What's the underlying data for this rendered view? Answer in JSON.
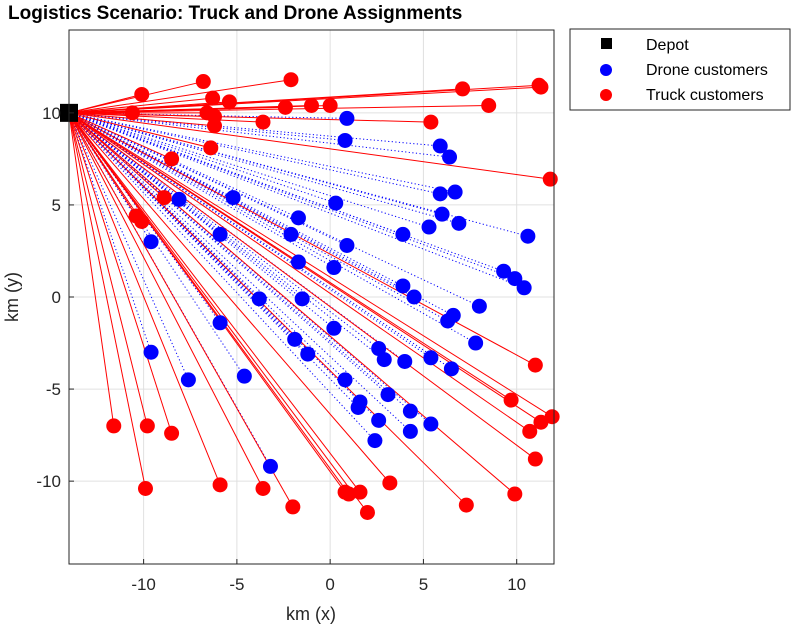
{
  "chart_data": {
    "type": "scatter",
    "title": "Logistics Scenario: Truck and Drone Assignments",
    "xlabel": "km (x)",
    "ylabel": "km (y)",
    "xlim": [
      -14,
      12
    ],
    "ylim": [
      -14.5,
      14.5
    ],
    "xticks": [
      -10,
      -5,
      0,
      5,
      10
    ],
    "yticks": [
      -10,
      -5,
      0,
      5,
      10
    ],
    "xtick_labels": [
      "-10",
      "-5",
      "0",
      "5",
      "10"
    ],
    "ytick_labels": [
      "-10",
      "-5",
      "0",
      "5",
      "10"
    ],
    "grid": true,
    "legend_position": "outside-top-right",
    "depot": {
      "name": "Depot",
      "x": -14,
      "y": 10,
      "color": "#000000"
    },
    "series": [
      {
        "name": "Drone customers",
        "color": "#0000ff",
        "link_style": "dotted",
        "points": [
          [
            0.9,
            9.7
          ],
          [
            0.8,
            8.5
          ],
          [
            5.9,
            8.2
          ],
          [
            6.4,
            7.6
          ],
          [
            5.9,
            5.6
          ],
          [
            6.7,
            5.7
          ],
          [
            -5.2,
            5.4
          ],
          [
            -8.1,
            5.3
          ],
          [
            0.3,
            5.1
          ],
          [
            6.0,
            4.5
          ],
          [
            5.3,
            3.8
          ],
          [
            6.9,
            4.0
          ],
          [
            -1.7,
            4.3
          ],
          [
            -2.1,
            3.4
          ],
          [
            -5.9,
            3.4
          ],
          [
            3.9,
            3.4
          ],
          [
            10.6,
            3.3
          ],
          [
            -9.6,
            3.0
          ],
          [
            0.9,
            2.8
          ],
          [
            -1.7,
            1.9
          ],
          [
            0.2,
            1.6
          ],
          [
            9.3,
            1.4
          ],
          [
            9.9,
            1.0
          ],
          [
            10.4,
            0.5
          ],
          [
            3.9,
            0.6
          ],
          [
            4.5,
            0.0
          ],
          [
            -3.8,
            -0.1
          ],
          [
            -1.5,
            -0.1
          ],
          [
            8.0,
            -0.5
          ],
          [
            6.6,
            -1.0
          ],
          [
            6.3,
            -1.3
          ],
          [
            -5.9,
            -1.4
          ],
          [
            0.2,
            -1.7
          ],
          [
            -1.9,
            -2.3
          ],
          [
            7.8,
            -2.5
          ],
          [
            2.6,
            -2.8
          ],
          [
            -9.6,
            -3.0
          ],
          [
            -1.2,
            -3.1
          ],
          [
            2.9,
            -3.4
          ],
          [
            4.0,
            -3.5
          ],
          [
            5.4,
            -3.3
          ],
          [
            6.5,
            -3.9
          ],
          [
            -7.6,
            -4.5
          ],
          [
            -4.6,
            -4.3
          ],
          [
            0.8,
            -4.5
          ],
          [
            3.1,
            -5.3
          ],
          [
            1.6,
            -5.7
          ],
          [
            1.5,
            -6.0
          ],
          [
            4.3,
            -6.2
          ],
          [
            2.6,
            -6.7
          ],
          [
            5.4,
            -6.9
          ],
          [
            4.3,
            -7.3
          ],
          [
            2.4,
            -7.8
          ],
          [
            -3.2,
            -9.2
          ]
        ]
      },
      {
        "name": "Truck customers",
        "color": "#ff0000",
        "link_style": "solid",
        "points": [
          [
            -10.1,
            11.0
          ],
          [
            -6.8,
            11.7
          ],
          [
            -2.1,
            11.8
          ],
          [
            7.1,
            11.3
          ],
          [
            11.2,
            11.5
          ],
          [
            11.3,
            11.4
          ],
          [
            -6.3,
            10.8
          ],
          [
            -5.4,
            10.6
          ],
          [
            -2.4,
            10.3
          ],
          [
            -1.0,
            10.4
          ],
          [
            0.0,
            10.4
          ],
          [
            8.5,
            10.4
          ],
          [
            -10.6,
            10.0
          ],
          [
            -6.6,
            10.0
          ],
          [
            -6.2,
            9.8
          ],
          [
            -6.2,
            9.3
          ],
          [
            -3.6,
            9.5
          ],
          [
            5.4,
            9.5
          ],
          [
            -6.4,
            8.1
          ],
          [
            -8.5,
            7.5
          ],
          [
            11.8,
            6.4
          ],
          [
            -8.9,
            5.4
          ],
          [
            -10.4,
            4.4
          ],
          [
            -10.1,
            4.1
          ],
          [
            11.0,
            -3.7
          ],
          [
            9.7,
            -5.6
          ],
          [
            11.9,
            -6.5
          ],
          [
            11.3,
            -6.8
          ],
          [
            10.7,
            -7.3
          ],
          [
            11.0,
            -8.8
          ],
          [
            -11.6,
            -7.0
          ],
          [
            -9.8,
            -7.0
          ],
          [
            -8.5,
            -7.4
          ],
          [
            -9.9,
            -10.4
          ],
          [
            -5.9,
            -10.2
          ],
          [
            -3.6,
            -10.4
          ],
          [
            -2.0,
            -11.4
          ],
          [
            0.8,
            -10.6
          ],
          [
            1.0,
            -10.7
          ],
          [
            1.6,
            -10.6
          ],
          [
            3.2,
            -10.1
          ],
          [
            2.0,
            -11.7
          ],
          [
            7.3,
            -11.3
          ],
          [
            9.9,
            -10.7
          ]
        ]
      }
    ]
  },
  "legend": {
    "items": [
      {
        "label": "Depot",
        "color": "#000000",
        "marker": "square"
      },
      {
        "label": "Drone customers",
        "color": "#0000ff",
        "marker": "circle"
      },
      {
        "label": "Truck customers",
        "color": "#ff0000",
        "marker": "circle"
      }
    ]
  }
}
